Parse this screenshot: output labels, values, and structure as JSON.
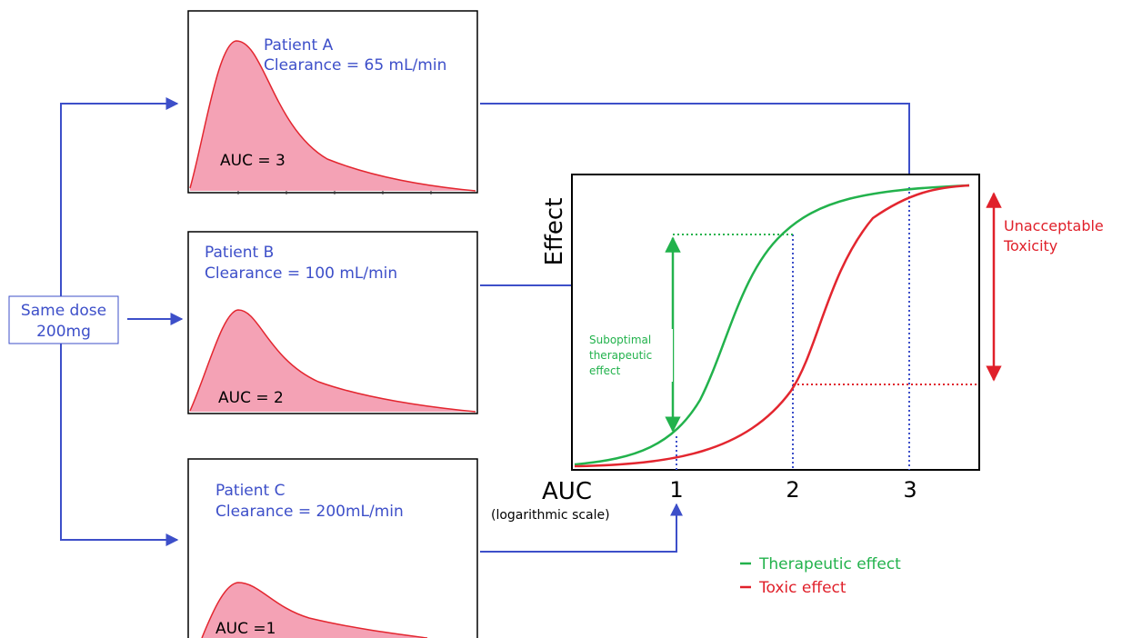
{
  "dose_box": {
    "line1": "Same dose",
    "line2": "200mg"
  },
  "patients": [
    {
      "name": "Patient A",
      "clearance": "Clearance = 65 mL/min",
      "auc_label": "AUC = 3",
      "auc": 3
    },
    {
      "name": "Patient B",
      "clearance": "Clearance = 100 mL/min",
      "auc_label": "AUC = 2",
      "auc": 2
    },
    {
      "name": "Patient C",
      "clearance": "Clearance = 200mL/min",
      "auc_label": "AUC =1",
      "auc": 1
    }
  ],
  "effect_chart": {
    "ylabel": "Effect",
    "xlabel": "AUC",
    "xlabel_note": "(logarithmic scale)",
    "ticks": [
      "1",
      "2",
      "3"
    ],
    "suboptimal_label": [
      "Suboptimal",
      "therapeutic",
      "effect"
    ],
    "toxicity_label": [
      "Unacceptable",
      "Toxicity"
    ]
  },
  "legend": {
    "therapeutic": "Therapeutic effect",
    "toxic": "Toxic effect"
  },
  "colors": {
    "blue": "#3d4fc9",
    "green": "#22b24c",
    "red": "#e0202a",
    "pink_fill": "#f4a2b5",
    "curve_red": "#e3262f"
  }
}
